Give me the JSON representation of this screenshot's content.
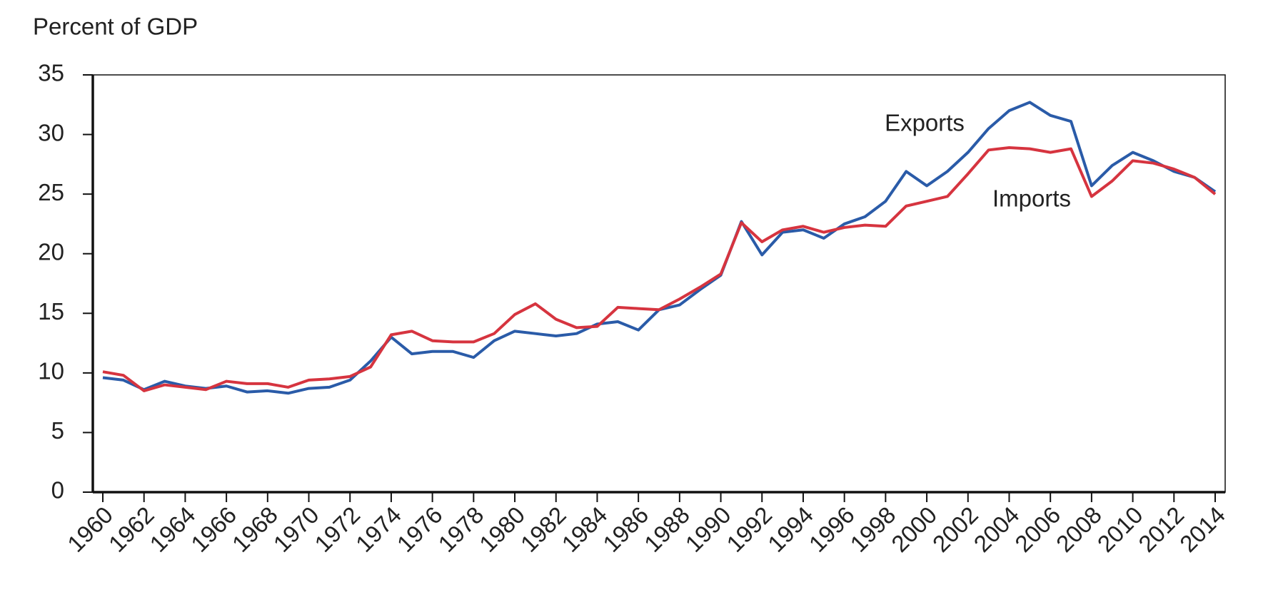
{
  "chart_data": {
    "type": "line",
    "ylabel": "Percent of GDP",
    "x": [
      1960,
      1961,
      1962,
      1963,
      1964,
      1965,
      1966,
      1967,
      1968,
      1969,
      1970,
      1971,
      1972,
      1973,
      1974,
      1975,
      1976,
      1977,
      1978,
      1979,
      1980,
      1981,
      1982,
      1983,
      1984,
      1985,
      1986,
      1987,
      1988,
      1989,
      1990,
      1991,
      1992,
      1993,
      1994,
      1995,
      1996,
      1997,
      1998,
      1999,
      2000,
      2001,
      2002,
      2003,
      2004,
      2005,
      2006,
      2007,
      2008,
      2009,
      2010,
      2011,
      2012,
      2013,
      2014
    ],
    "series": [
      {
        "name": "Exports",
        "color": "#2a5ba8",
        "values": [
          9.6,
          9.4,
          8.6,
          9.3,
          8.9,
          8.7,
          8.9,
          8.4,
          8.5,
          8.3,
          8.7,
          8.8,
          9.4,
          11.0,
          13.0,
          11.6,
          11.8,
          11.8,
          11.3,
          12.7,
          13.5,
          13.3,
          13.1,
          13.3,
          14.1,
          14.3,
          13.6,
          15.3,
          15.7,
          17.0,
          18.2,
          22.7,
          19.9,
          21.8,
          22.0,
          21.3,
          22.5,
          23.1,
          24.4,
          26.9,
          25.7,
          26.9,
          28.5,
          30.5,
          32.0,
          32.7,
          31.6,
          31.1,
          25.7,
          27.4,
          28.5,
          27.8,
          26.9,
          26.4,
          25.2
        ]
      },
      {
        "name": "Imports",
        "color": "#d6343f",
        "values": [
          10.1,
          9.8,
          8.5,
          9.0,
          8.8,
          8.6,
          9.3,
          9.1,
          9.1,
          8.8,
          9.4,
          9.5,
          9.7,
          10.5,
          13.2,
          13.5,
          12.7,
          12.6,
          12.6,
          13.3,
          14.9,
          15.8,
          14.5,
          13.8,
          13.9,
          15.5,
          15.4,
          15.3,
          16.2,
          17.2,
          18.3,
          22.6,
          21.0,
          22.0,
          22.3,
          21.8,
          22.2,
          22.4,
          22.3,
          24.0,
          24.4,
          24.8,
          26.7,
          28.7,
          28.9,
          28.8,
          28.5,
          28.8,
          24.8,
          26.1,
          27.8,
          27.6,
          27.1,
          26.4,
          25.0
        ]
      }
    ],
    "xlim": [
      1960,
      2014
    ],
    "xticks": [
      1960,
      1962,
      1964,
      1966,
      1968,
      1970,
      1972,
      1974,
      1976,
      1978,
      1980,
      1982,
      1984,
      1986,
      1988,
      1990,
      1992,
      1994,
      1996,
      1998,
      2000,
      2002,
      2004,
      2006,
      2008,
      2010,
      2012,
      2014
    ],
    "ylim": [
      0,
      35
    ],
    "yticks": [
      0,
      5,
      10,
      15,
      20,
      25,
      30,
      35
    ]
  }
}
